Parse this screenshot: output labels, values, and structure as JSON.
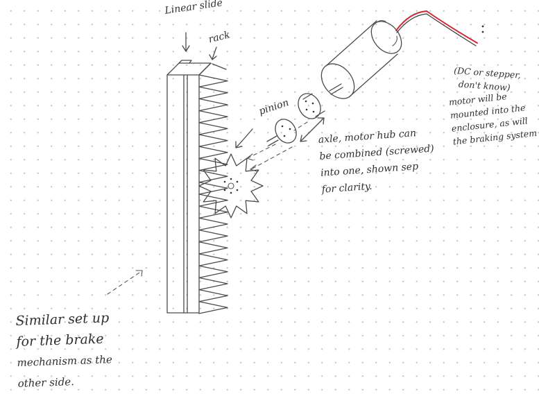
{
  "labels": {
    "linear_slide": "Linear slide",
    "rack": "rack",
    "pinion": "pinion",
    "axle_note": [
      "axle, motor hub can",
      "be combined (screwed)",
      "into one, shown sep",
      "for clarity."
    ],
    "motor_type": [
      "(DC or stepper,",
      "don't know)"
    ],
    "motor_mount": [
      "motor will be",
      "mounted into the",
      "enclosure, as will",
      "the braking system"
    ],
    "similar_setup": [
      "Similar set up",
      "for the brake",
      "mechanism as the",
      "other side."
    ]
  },
  "colors": {
    "ink": "#4a4a4a",
    "wire": "#d4242a",
    "dot_grid": "#c9c9c9"
  }
}
